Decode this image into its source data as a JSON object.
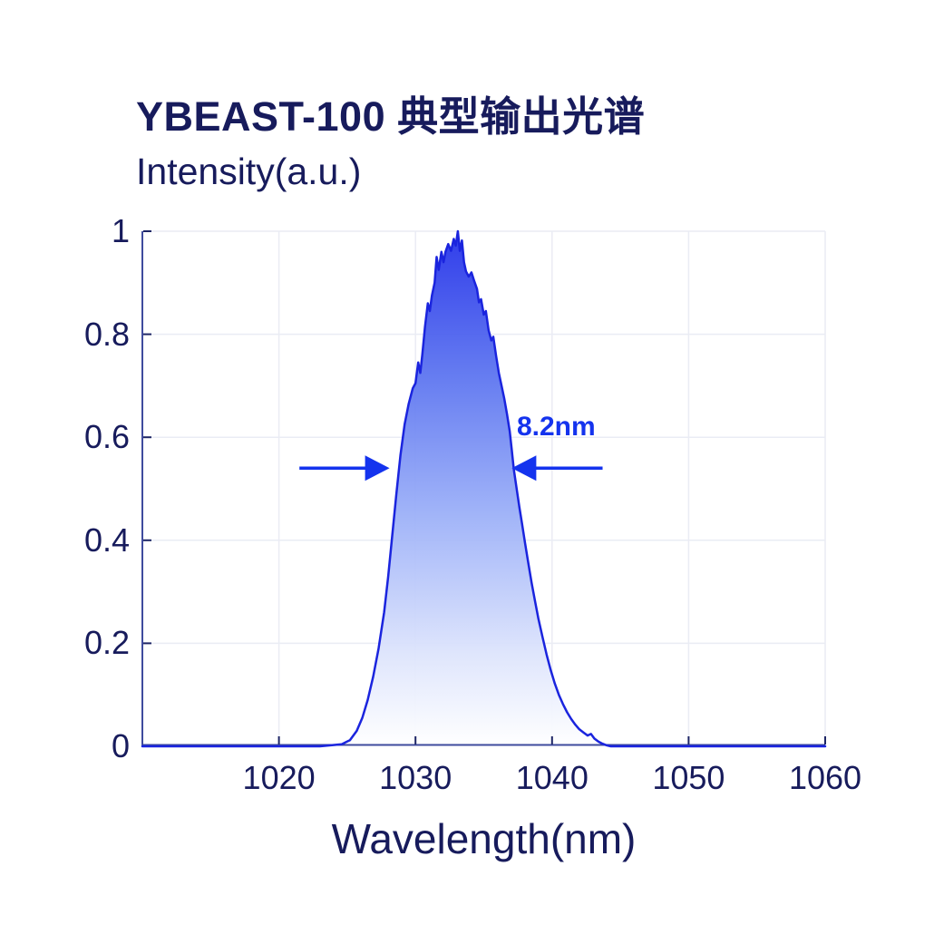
{
  "header": {
    "title": "YBEAST-100 典型输出光谱",
    "y_axis_title": "Intensity(a.u.)",
    "x_axis_title": "Wavelength(nm)"
  },
  "colors": {
    "text_navy": "#171b5c",
    "axis_line": "#3f4b9e",
    "tick_mark": "#1d2565",
    "gridline": "#eaecf4",
    "curve_stroke": "#1a24de",
    "fill_top": "#2532e9",
    "fill_upper_mid": "#5d75f0",
    "fill_mid": "#9cb0f8",
    "fill_lower": "#dde4fc",
    "fill_bottom": "#ffffff",
    "annotation_blue": "#1433ee",
    "background": "#ffffff"
  },
  "chart_data": {
    "type": "area",
    "title": "YBEAST-100 典型输出光谱",
    "xlabel": "Wavelength(nm)",
    "ylabel": "Intensity(a.u.)",
    "xlim": [
      1010,
      1060
    ],
    "ylim": [
      0,
      1
    ],
    "xticks": [
      1020,
      1030,
      1040,
      1050,
      1060
    ],
    "yticks": [
      0,
      0.2,
      0.4,
      0.6,
      0.8,
      1
    ],
    "grid": true,
    "legend": "none",
    "peak_nm": 1033.1,
    "peak_intensity": 1.0,
    "fwhm_annotation": {
      "label": "8.2nm",
      "value_nm": 8.2,
      "intensity_level": 0.54,
      "left_arrow_x": [
        1021.5,
        1028.1
      ],
      "right_arrow_x": [
        1043.7,
        1037.05
      ],
      "label_center": [
        1040.3,
        0.62
      ]
    },
    "series": [
      {
        "name": "output-spectrum",
        "x": [
          1010,
          1018,
          1023,
          1024.6,
          1025.2,
          1025.7,
          1026.1,
          1026.5,
          1026.9,
          1027.3,
          1027.7,
          1028.0,
          1028.3,
          1028.6,
          1028.9,
          1029.2,
          1029.5,
          1029.8,
          1030.0,
          1030.2,
          1030.35,
          1030.5,
          1030.7,
          1030.9,
          1031.05,
          1031.2,
          1031.4,
          1031.55,
          1031.7,
          1031.9,
          1032.05,
          1032.2,
          1032.4,
          1032.6,
          1032.8,
          1032.95,
          1033.1,
          1033.25,
          1033.4,
          1033.55,
          1033.7,
          1033.9,
          1034.1,
          1034.3,
          1034.5,
          1034.65,
          1034.8,
          1035.0,
          1035.15,
          1035.35,
          1035.55,
          1035.7,
          1035.9,
          1036.1,
          1036.3,
          1036.5,
          1036.7,
          1036.9,
          1037.05,
          1037.2,
          1037.4,
          1037.6,
          1037.8,
          1038.0,
          1038.25,
          1038.5,
          1038.75,
          1039.0,
          1039.3,
          1039.6,
          1039.9,
          1040.2,
          1040.5,
          1040.8,
          1041.1,
          1041.4,
          1041.7,
          1042.0,
          1042.3,
          1042.6,
          1042.85,
          1043.1,
          1043.4,
          1043.7,
          1044.0,
          1044.3,
          1045.0,
          1050.0,
          1060.0
        ],
        "y": [
          0,
          0,
          0,
          0.004,
          0.012,
          0.03,
          0.055,
          0.09,
          0.135,
          0.19,
          0.26,
          0.33,
          0.41,
          0.49,
          0.565,
          0.625,
          0.665,
          0.695,
          0.705,
          0.745,
          0.725,
          0.76,
          0.815,
          0.86,
          0.845,
          0.875,
          0.9,
          0.95,
          0.925,
          0.96,
          0.94,
          0.96,
          0.975,
          0.962,
          0.985,
          0.972,
          1.0,
          0.962,
          0.982,
          0.94,
          0.922,
          0.912,
          0.92,
          0.903,
          0.888,
          0.862,
          0.868,
          0.838,
          0.845,
          0.808,
          0.788,
          0.795,
          0.758,
          0.725,
          0.7,
          0.675,
          0.645,
          0.612,
          0.575,
          0.538,
          0.502,
          0.465,
          0.432,
          0.398,
          0.358,
          0.318,
          0.282,
          0.248,
          0.212,
          0.178,
          0.148,
          0.122,
          0.1,
          0.082,
          0.066,
          0.053,
          0.042,
          0.033,
          0.027,
          0.021,
          0.024,
          0.015,
          0.009,
          0.005,
          0.002,
          0,
          0,
          0,
          0
        ]
      }
    ]
  }
}
